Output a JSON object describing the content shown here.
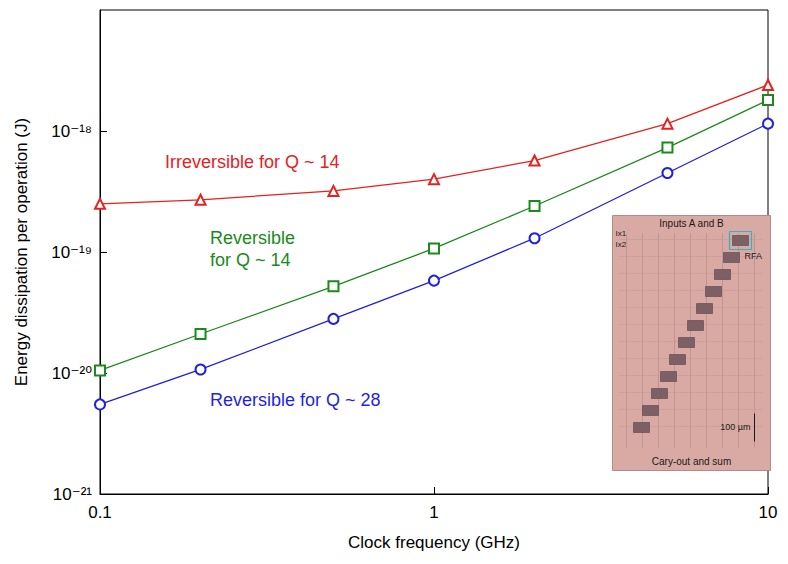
{
  "chart_data": {
    "type": "line",
    "xlabel": "Clock frequency (GHz)",
    "ylabel": "Energy dissipation per operation (J)",
    "log": true,
    "grid": false,
    "x": [
      0.1,
      0.2,
      0.5,
      1,
      2,
      5,
      10
    ],
    "xlim": [
      0.1,
      10
    ],
    "xticks": [
      0.1,
      1,
      10
    ],
    "ylim": [
      1e-21,
      1e-17
    ],
    "yticks": [
      {
        "value": 1e-21,
        "label": "10⁻²¹"
      },
      {
        "value": 1e-20,
        "label": "10⁻²⁰"
      },
      {
        "value": 1e-19,
        "label": "10⁻¹⁹"
      },
      {
        "value": 1e-18,
        "label": "10⁻¹⁸"
      }
    ],
    "series": [
      {
        "name": "Irreversible for Q ~ 14",
        "color": "#e8201f",
        "marker": "triangle",
        "line_style": "solid",
        "values": [
          2.5e-19,
          2.7e-19,
          3.2e-19,
          4e-19,
          5.7e-19,
          1.15e-18,
          2.4e-18
        ]
      },
      {
        "name": "Reversible for Q ~ 14",
        "color": "#1a8a1a",
        "marker": "square",
        "line_style": "solid",
        "values": [
          1.05e-20,
          2.1e-20,
          5.2e-20,
          1.07e-19,
          2.4e-19,
          7.3e-19,
          1.8e-18
        ]
      },
      {
        "name": "Reversible for Q ~ 28",
        "color": "#1f1fe6",
        "marker": "circle",
        "line_style": "solid",
        "values": [
          5.5e-21,
          1.07e-20,
          2.8e-20,
          5.8e-20,
          1.3e-19,
          4.5e-19,
          1.15e-18
        ]
      }
    ],
    "inset": {
      "top_label": "Inputs A and B",
      "bottom_label": "Cary-out and sum",
      "block_label": "RFA",
      "scale_label": "100 µm",
      "current_labels": [
        "Ix1",
        "Ix2"
      ]
    }
  }
}
